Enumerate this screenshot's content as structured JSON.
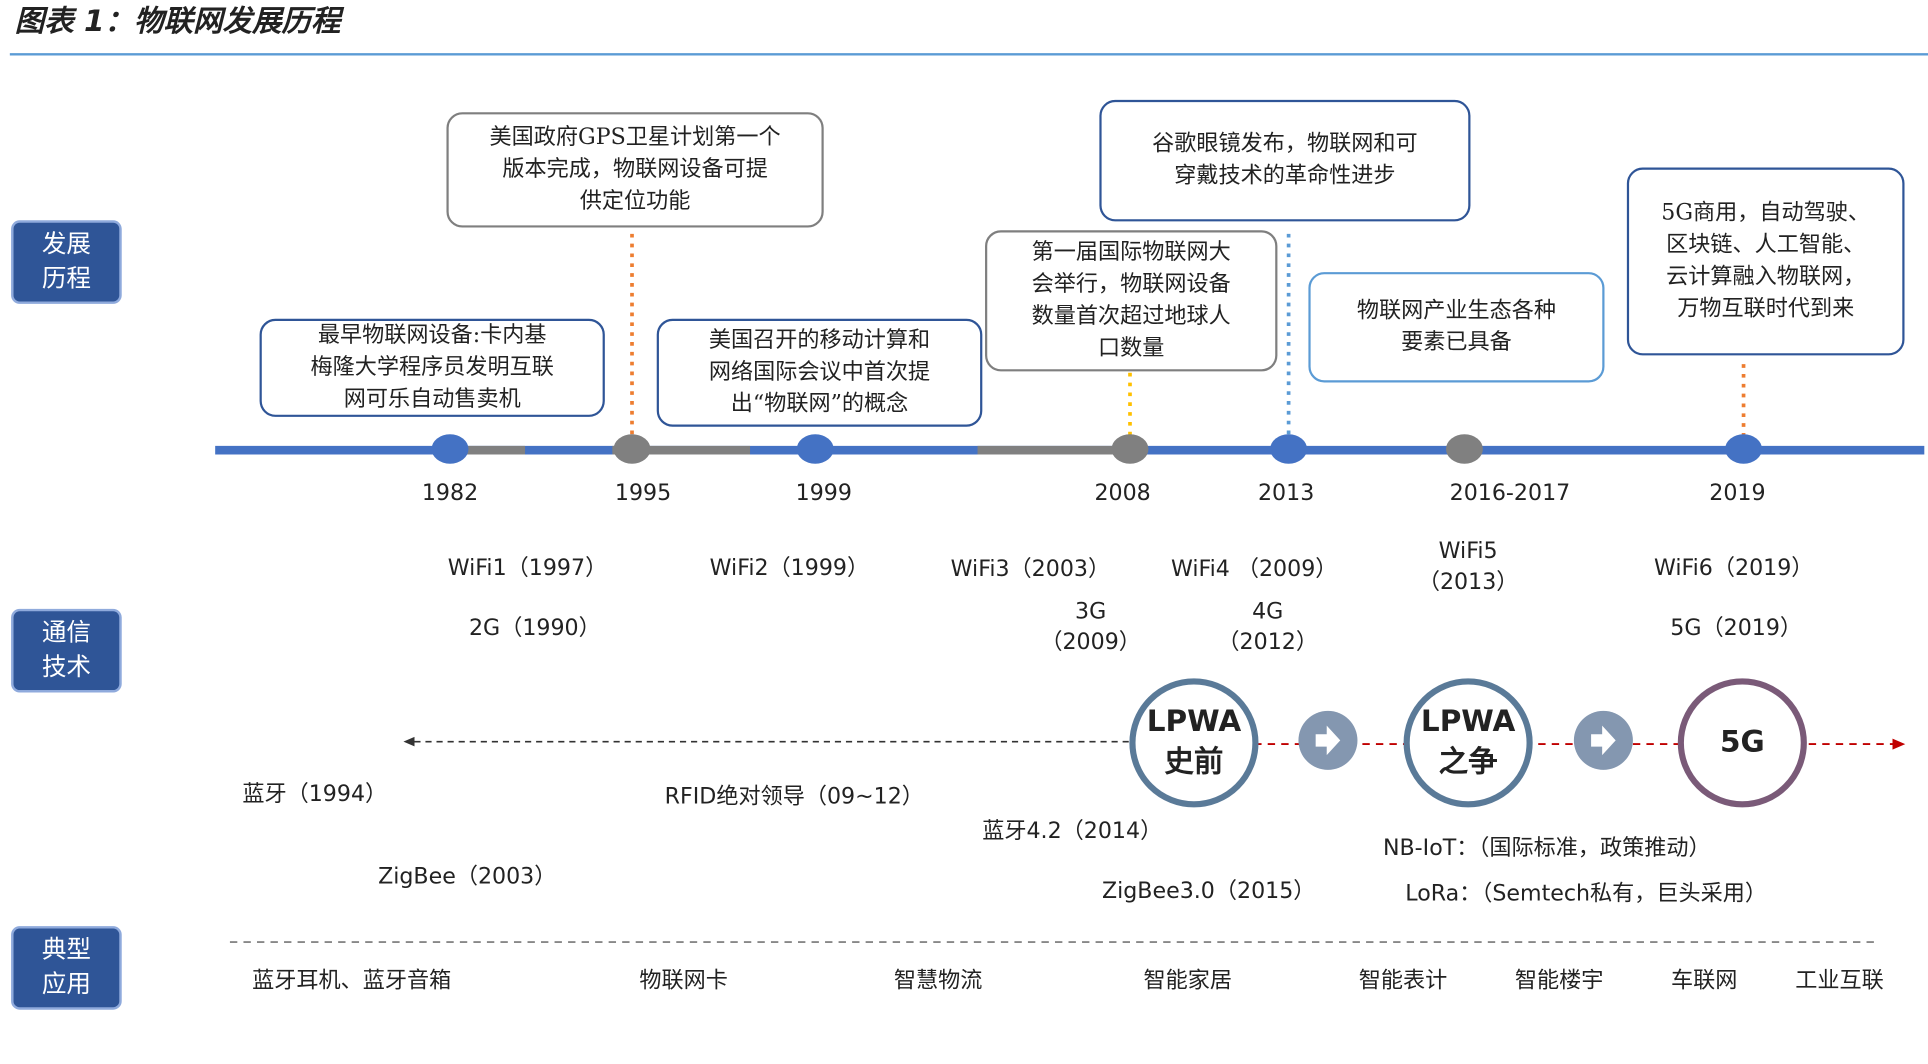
{
  "header": {
    "title": "图表 1：物联网发展历程"
  },
  "sections": [
    [
      "发展",
      "历程"
    ],
    [
      "通信",
      "技术"
    ],
    [
      "典型",
      "应用"
    ]
  ],
  "timeline": {
    "events": [
      {
        "year": "1982",
        "text": [
          "最早物联网设备:卡内基",
          "梅隆大学程序员发明互联",
          "网可乐自动售卖机"
        ]
      },
      {
        "year": "1995",
        "text": [
          "美国政府GPS卫星计划第一个",
          "版本完成，物联网设备可提",
          "供定位功能"
        ]
      },
      {
        "year": "1999",
        "text": [
          "美国召开的移动计算和",
          "网络国际会议中首次提",
          "出“物联网”的概念"
        ]
      },
      {
        "year": "2008",
        "text": [
          "第一届国际物联网大",
          "会举行，物联网设备",
          "数量首次超过地球人",
          "口数量"
        ]
      },
      {
        "year": "2013",
        "text": [
          "谷歌眼镜发布，物联网和可",
          "穿戴技术的革命性进步"
        ]
      },
      {
        "year": "2016-2017",
        "text": [
          "物联网产业生态各种",
          "要素已具备"
        ]
      },
      {
        "year": "2019",
        "text": [
          "5G商用，自动驾驶、",
          "区块链、人工智能、",
          "云计算融入物联网，",
          "万物互联时代到来"
        ]
      }
    ]
  },
  "technologies": [
    [
      "WiFi1（1997）"
    ],
    [
      "WiFi2（1999）"
    ],
    [
      "WiFi3（2003）"
    ],
    [
      "WiFi4 （2009）"
    ],
    [
      "WiFi5",
      "（2013）"
    ],
    [
      "WiFi6（2019）"
    ],
    [
      "2G（1990）"
    ],
    [
      "3G",
      "（2009）"
    ],
    [
      "4G",
      "（2012）"
    ],
    [
      "5G（2019）"
    ],
    [
      "蓝牙（1994）"
    ],
    [
      "RFID绝对领导（09~12）"
    ],
    [
      "ZigBee（2003）"
    ],
    [
      "蓝牙4.2（2014）"
    ],
    [
      "ZigBee3.0（2015）"
    ],
    [
      "NB-IoT：（国际标准，政策推动）"
    ],
    [
      "LoRa：（Semtech私有，巨头采用）"
    ]
  ],
  "stages": [
    [
      "LPWA",
      "史前"
    ],
    [
      "LPWA",
      "之争"
    ],
    [
      "5G"
    ]
  ],
  "applications": [
    "蓝牙耳机、蓝牙音箱",
    "物联网卡",
    "智慧物流",
    "智能家居",
    "智能表计",
    "智能楼宇",
    "车联网",
    "工业互联"
  ]
}
